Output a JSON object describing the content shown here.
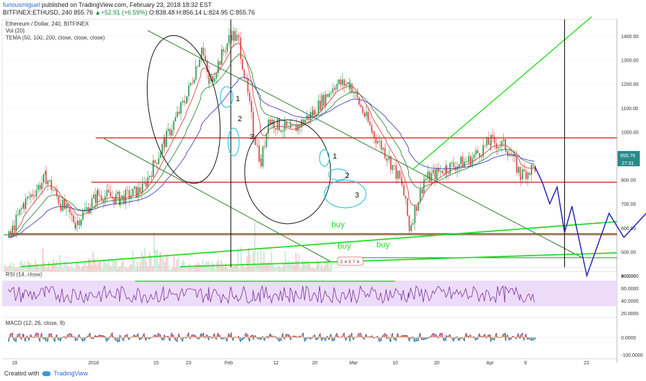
{
  "header": {
    "user": "furiousmiguel",
    "published": "published on TradingView.com, February 23, 2018 18:32 EST",
    "symbol": "BITFINEX:ETHUSD, 240",
    "price": "855.76",
    "change": "▲+52.91 (+6.59%)",
    "ohlc": "O:838.48 H:856.14 L:824.95 C:855.76"
  },
  "legend": {
    "title": "Ethereum / Dollar, 240, BITFINEX",
    "vol": "Vol (20)",
    "tema": "TEMA (50, 100, 200, close, close, close)",
    "rsi": "RSI (14, close)",
    "macd": "MACD (12, 26, close, 9)"
  },
  "footer": {
    "created": "Created with",
    "brand": "TradingView"
  },
  "colors": {
    "candle_up": "#2e9e52",
    "candle_down": "#e04a4a",
    "annotation_blue": "#2222b8",
    "annotation_green": "#22dd22",
    "annotation_cyan": "#30c8e0",
    "annotation_red": "#e02020",
    "trendline": "#2e7d2e",
    "rsi_band": "#ecdcfa",
    "rsi_line": "#7b2d9b",
    "price_tag": "#2a8a8a"
  },
  "chart_data": {
    "type": "candlestick",
    "title": "Ethereum / Dollar, 240, BITFINEX",
    "y_axis_ticks": [
      "1400.00",
      "1300.00",
      "1200.00",
      "1100.00",
      "1000.00",
      "900.00",
      "800.00",
      "700.00",
      "600.00",
      "500.00",
      "400.00"
    ],
    "ylim": [
      350,
      1480
    ],
    "x_axis_ticks": [
      "19",
      "2018",
      "15",
      "23",
      "Feb",
      "12",
      "20",
      "Mar",
      "10",
      "20",
      "Apr",
      "9",
      "23"
    ],
    "last_price": "855.76",
    "countdown": "27:31",
    "price_path": [
      [
        "2017-12-14",
        560
      ],
      [
        "2017-12-16",
        700
      ],
      [
        "2017-12-19",
        810
      ],
      [
        "2017-12-21",
        700
      ],
      [
        "2017-12-23",
        620
      ],
      [
        "2017-12-26",
        740
      ],
      [
        "2017-12-29",
        720
      ],
      [
        "2018-01-01",
        760
      ],
      [
        "2018-01-04",
        960
      ],
      [
        "2018-01-07",
        1150
      ],
      [
        "2018-01-09",
        1350
      ],
      [
        "2018-01-10",
        1200
      ],
      [
        "2018-01-13",
        1410
      ],
      [
        "2018-01-14",
        1380
      ],
      [
        "2018-01-16",
        1000
      ],
      [
        "2018-01-17",
        870
      ],
      [
        "2018-01-18",
        1050
      ],
      [
        "2018-01-21",
        1000
      ],
      [
        "2018-01-24",
        1080
      ],
      [
        "2018-01-27",
        1200
      ],
      [
        "2018-01-29",
        1200
      ],
      [
        "2018-02-01",
        1000
      ],
      [
        "2018-02-03",
        900
      ],
      [
        "2018-02-05",
        780
      ],
      [
        "2018-02-06",
        600
      ],
      [
        "2018-02-08",
        800
      ],
      [
        "2018-02-11",
        850
      ],
      [
        "2018-02-14",
        880
      ],
      [
        "2018-02-17",
        960
      ],
      [
        "2018-02-19",
        940
      ],
      [
        "2018-02-21",
        820
      ],
      [
        "2018-02-23",
        855.76
      ]
    ],
    "horizontal_levels": [
      975,
      790,
      575
    ],
    "vertical_marks": [
      "2018-01-13",
      "2018-02-27",
      "2018-04-22"
    ],
    "forecast_path": [
      [
        "2018-02-23",
        855
      ],
      [
        "2018-02-24",
        790
      ],
      [
        "2018-02-25",
        700
      ],
      [
        "2018-02-26",
        770
      ],
      [
        "2018-02-27",
        580
      ],
      [
        "2018-02-28",
        690
      ],
      [
        "2018-03-02",
        400
      ],
      [
        "2018-03-05",
        660
      ],
      [
        "2018-03-07",
        560
      ],
      [
        "2018-03-10",
        660
      ],
      [
        "2018-03-12",
        400
      ],
      [
        "2018-03-16",
        785
      ],
      [
        "2018-03-20",
        575
      ],
      [
        "2018-03-22",
        700
      ],
      [
        "2018-03-24",
        575
      ],
      [
        "2018-04-04",
        1000
      ],
      [
        "2018-04-09",
        780
      ],
      [
        "2018-04-17",
        1180
      ],
      [
        "2018-04-22",
        975
      ],
      [
        "2018-05-03",
        1440
      ]
    ],
    "wave_labels": [
      "1",
      "2",
      "3",
      "1",
      "2",
      "3"
    ],
    "annotations": [
      "buy",
      "buy",
      "buy"
    ],
    "subchart_labels": [
      "2",
      "4",
      "5",
      "7",
      "6"
    ],
    "rsi_ticks": [
      "80.0000",
      "60.0000",
      "40.0000",
      "20.0000"
    ],
    "macd_ticks": [
      "0.0000",
      "-100.0000"
    ]
  }
}
